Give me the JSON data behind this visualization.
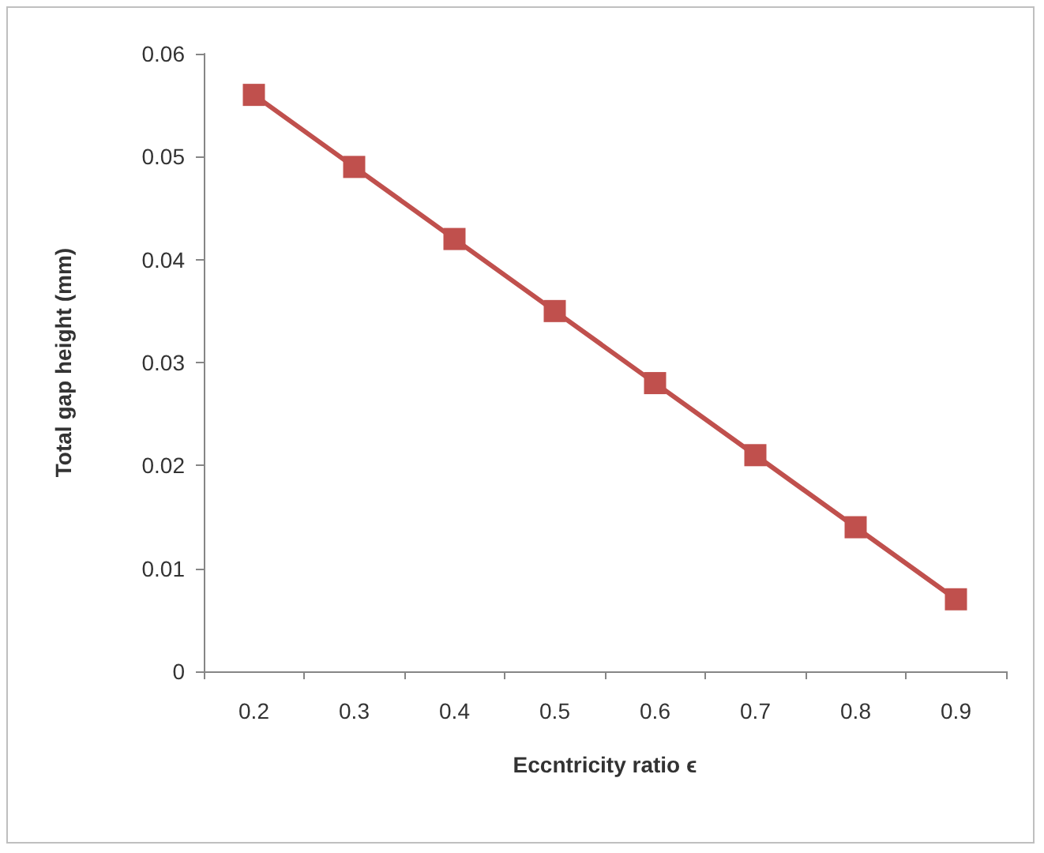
{
  "chart_data": {
    "type": "line",
    "xlabel": "Eccntricity ratio ϵ",
    "ylabel": "Total gap height (mm)",
    "categories": [
      "0.2",
      "0.3",
      "0.4",
      "0.5",
      "0.6",
      "0.7",
      "0.8",
      "0.9"
    ],
    "series": [
      {
        "color": "#c0504d",
        "values": [
          0.056,
          0.049,
          0.042,
          0.035,
          0.028,
          0.021,
          0.014,
          0.007
        ]
      }
    ],
    "ylim": [
      0,
      0.06
    ],
    "yticks": [
      0,
      0.01,
      0.02,
      0.03,
      0.04,
      0.05,
      0.06
    ],
    "grid": false,
    "marker": "square",
    "line_style": "solid"
  }
}
